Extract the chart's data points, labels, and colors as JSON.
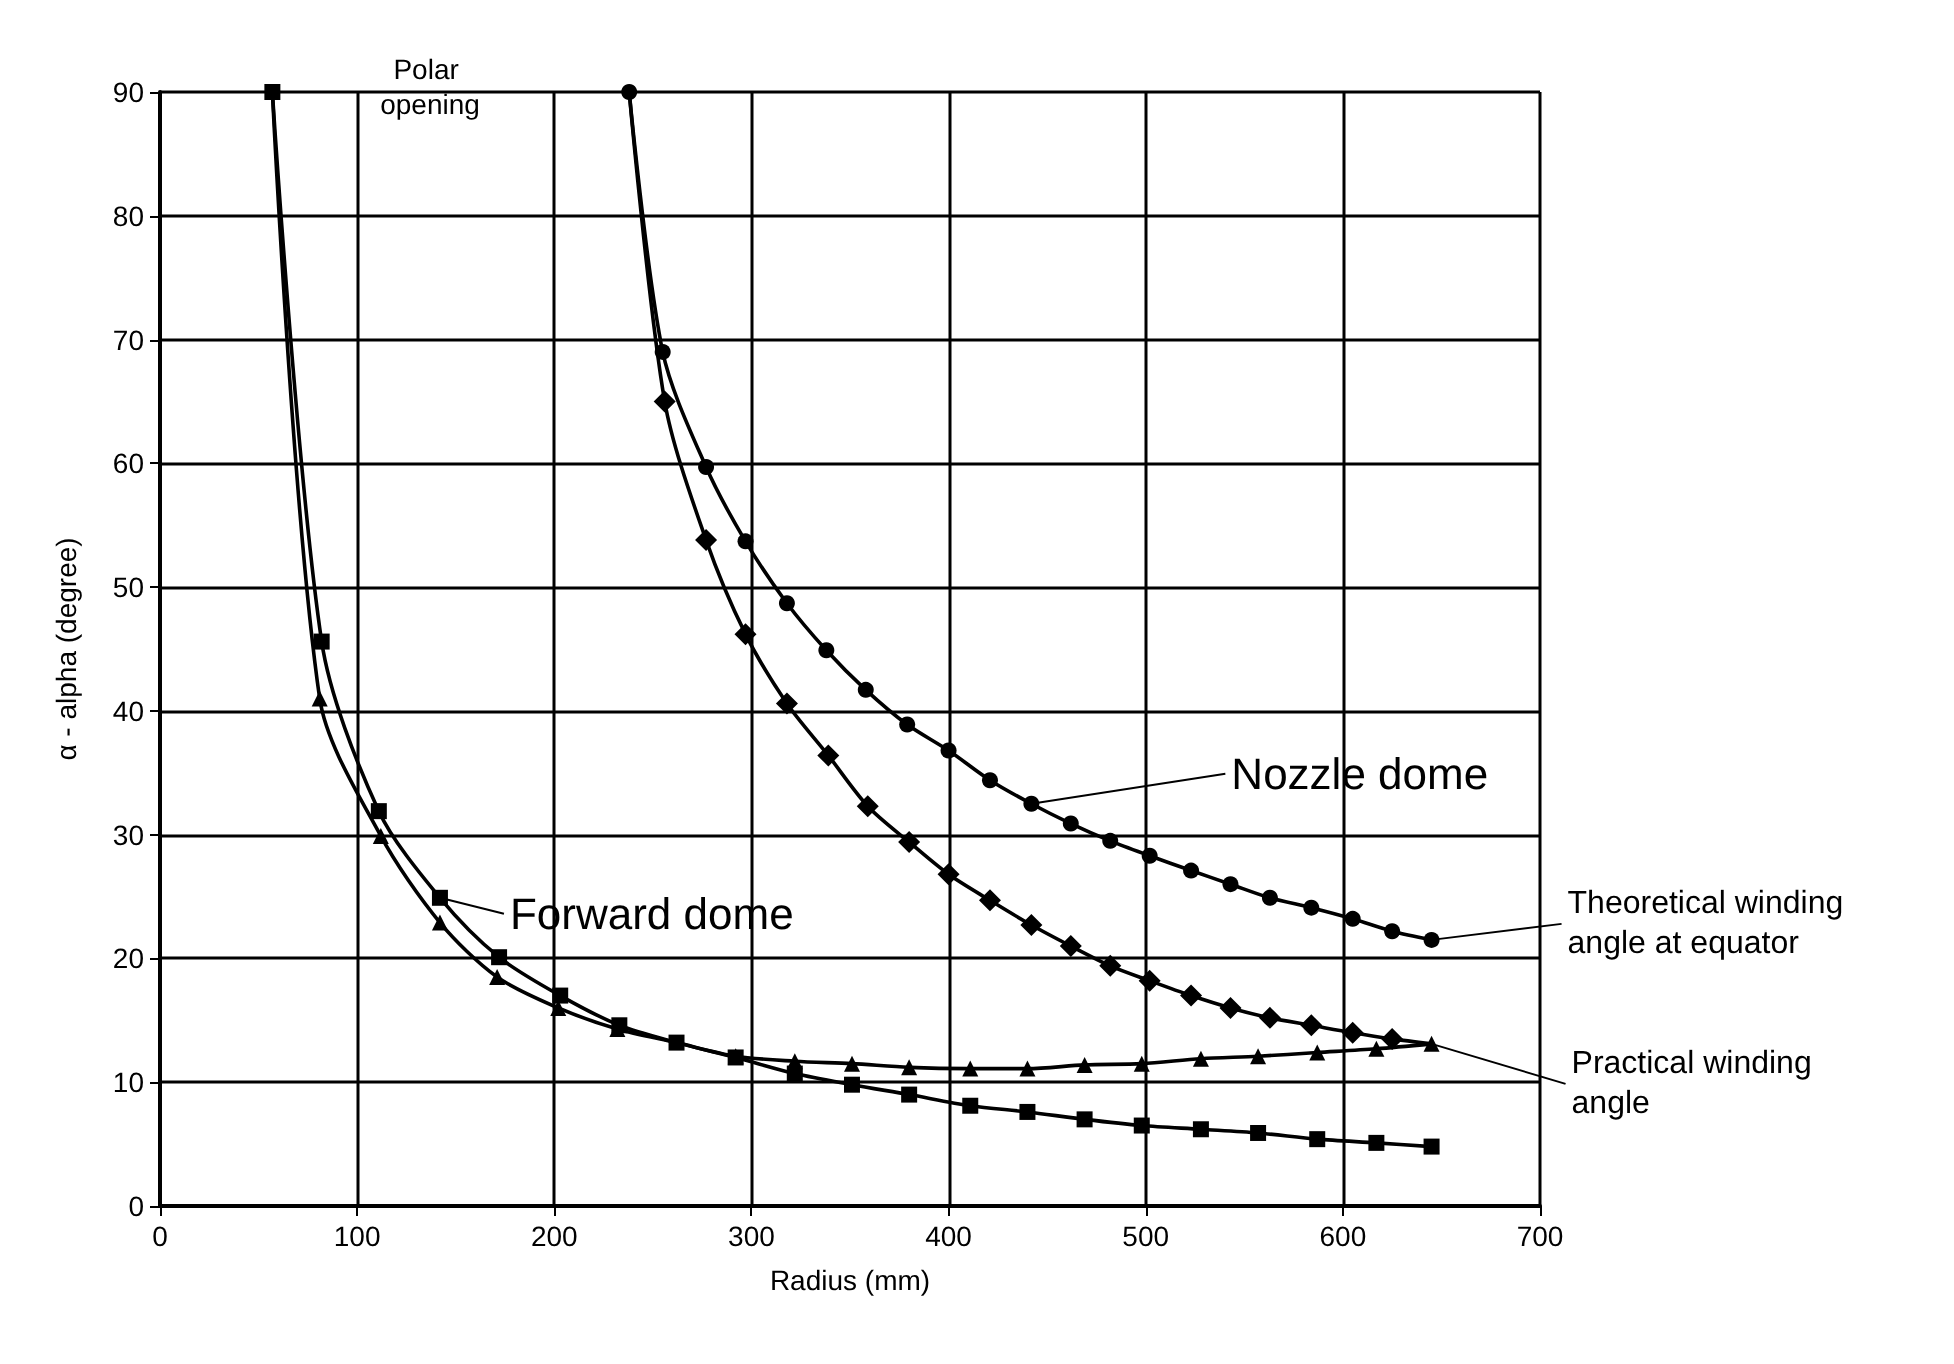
{
  "chart_data": {
    "type": "line",
    "xlabel": "Radius (mm)",
    "ylabel": "α - alpha (degree)",
    "xlim": [
      0,
      700
    ],
    "xticks": [
      0,
      100,
      200,
      300,
      400,
      500,
      600,
      700
    ],
    "ylim": [
      0,
      90
    ],
    "yticks": [
      0,
      10,
      20,
      30,
      40,
      50,
      60,
      70,
      80,
      90
    ],
    "grid": true,
    "line_style": "solid",
    "series": [
      {
        "color": "#000000",
        "marker": "square",
        "x": [
          57,
          82,
          111,
          142,
          172,
          203,
          233,
          262,
          292,
          322,
          351,
          380,
          411,
          440,
          469,
          498,
          528,
          557,
          587,
          617,
          645
        ],
        "values": [
          90,
          45.6,
          31.9,
          24.9,
          20.1,
          17.0,
          14.6,
          13.2,
          12.0,
          10.7,
          9.8,
          9.0,
          8.1,
          7.6,
          7.0,
          6.5,
          6.2,
          5.9,
          5.4,
          5.1,
          4.8
        ]
      },
      {
        "color": "#000000",
        "marker": "triangle",
        "x": [
          57,
          81,
          112,
          142,
          171,
          202,
          232,
          262,
          292,
          322,
          351,
          380,
          411,
          440,
          469,
          498,
          528,
          557,
          587,
          617,
          645
        ],
        "values": [
          90,
          41,
          29.9,
          22.9,
          18.5,
          16.0,
          14.3,
          13.2,
          12.1,
          11.7,
          11.5,
          11.2,
          11.1,
          11.1,
          11.4,
          11.5,
          11.9,
          12.1,
          12.4,
          12.7,
          13.1
        ]
      },
      {
        "color": "#000000",
        "marker": "circle",
        "x": [
          238,
          255,
          277,
          297,
          318,
          338,
          358,
          379,
          400,
          421,
          442,
          462,
          482,
          502,
          523,
          543,
          563,
          584,
          605,
          625,
          645
        ],
        "values": [
          90,
          69,
          59.7,
          53.7,
          48.7,
          44.9,
          41.7,
          38.9,
          36.8,
          34.4,
          32.5,
          30.9,
          29.5,
          28.3,
          27.1,
          26.0,
          24.9,
          24.1,
          23.2,
          22.2,
          21.5
        ]
      },
      {
        "color": "#000000",
        "marker": "diamond",
        "x": [
          238,
          256,
          277,
          297,
          318,
          339,
          359,
          380,
          400,
          421,
          442,
          462,
          482,
          502,
          523,
          543,
          563,
          584,
          605,
          625,
          645
        ],
        "values": [
          90,
          65.0,
          53.8,
          46.2,
          40.6,
          36.4,
          32.3,
          29.4,
          26.8,
          24.7,
          22.7,
          21.0,
          19.4,
          18.2,
          17.0,
          16.0,
          15.2,
          14.6,
          14.0,
          13.5,
          13.1
        ]
      }
    ],
    "annotations": [
      "Polar opening",
      {
        "text": "Forward dome",
        "x": 142,
        "y": 24.9
      },
      {
        "text": "Nozzle dome",
        "x": 442,
        "y": 32.5
      },
      {
        "text": "Theoretical winding angle at equator",
        "x": 645,
        "y": 21.5
      },
      {
        "text": "Practical winding angle",
        "x": 645,
        "y": 13.1
      }
    ]
  }
}
